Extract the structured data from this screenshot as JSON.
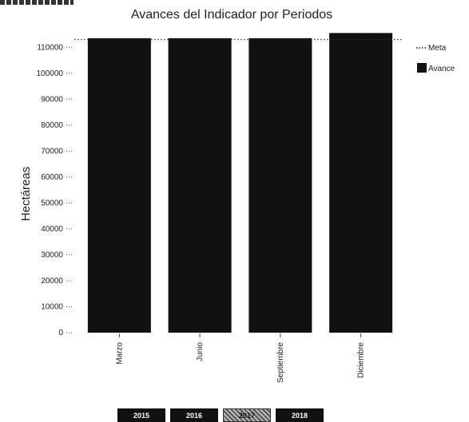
{
  "chart_data": {
    "type": "bar",
    "title": "Avances del Indicador por Periodos",
    "xlabel": "",
    "ylabel": "Hectáreas",
    "categories": [
      "Marzo",
      "Junio",
      "Septiembre",
      "Diciembre"
    ],
    "series": [
      {
        "name": "Avance",
        "values": [
          113500,
          113500,
          113500,
          115500
        ],
        "color": "#111111"
      },
      {
        "name": "Meta",
        "values": [
          113000,
          113000,
          113000,
          113000
        ],
        "color": "#222222",
        "style": "dotted"
      }
    ],
    "ylim": [
      0,
      115000
    ],
    "yticks": [
      0,
      10000,
      20000,
      30000,
      40000,
      50000,
      60000,
      70000,
      80000,
      90000,
      100000,
      110000
    ],
    "ytick_labels": [
      "0",
      "10000",
      "20000",
      "30000",
      "40000",
      "50000",
      "60000",
      "70000",
      "80000",
      "90000",
      "100000",
      "110000"
    ],
    "legend": {
      "placement": "top-right",
      "entries": [
        "Meta",
        "Avance"
      ]
    },
    "grid": false
  },
  "year_selector": {
    "years": [
      "2015",
      "2016",
      "2017",
      "2018"
    ],
    "active": "2017"
  }
}
